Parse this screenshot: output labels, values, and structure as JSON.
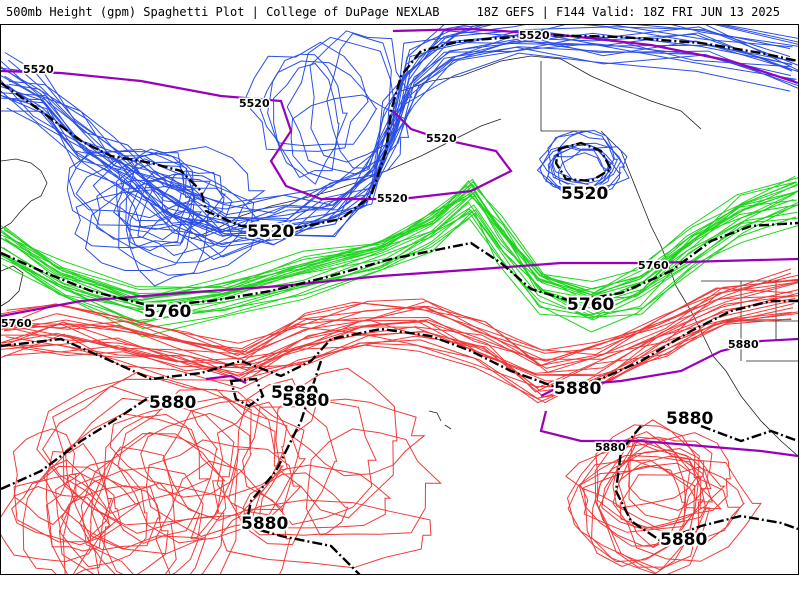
{
  "header": {
    "title": "500mb Height (gpm) Spaghetti Plot | College of DuPage NEXLAB",
    "run_info": "18Z GEFS | F144 Valid: 18Z FRI JUN 13 2025"
  },
  "contours": {
    "low_color": "#2b4fe6",
    "mid_color": "#1fd41f",
    "high_color": "#f03a3a",
    "mean_color": "#000000",
    "reference_color": "#9900bb",
    "coast_color": "#222222",
    "levels": [
      5520,
      5760,
      5880
    ]
  },
  "labels": {
    "big": [
      "5520",
      "5520",
      "5760",
      "5760",
      "5880",
      "5880",
      "5880",
      "5880",
      "5880",
      "5880",
      "5880"
    ],
    "small": [
      "5520",
      "5520",
      "5520",
      "5520",
      "5520",
      "5760",
      "5760",
      "5880",
      "5880"
    ]
  }
}
